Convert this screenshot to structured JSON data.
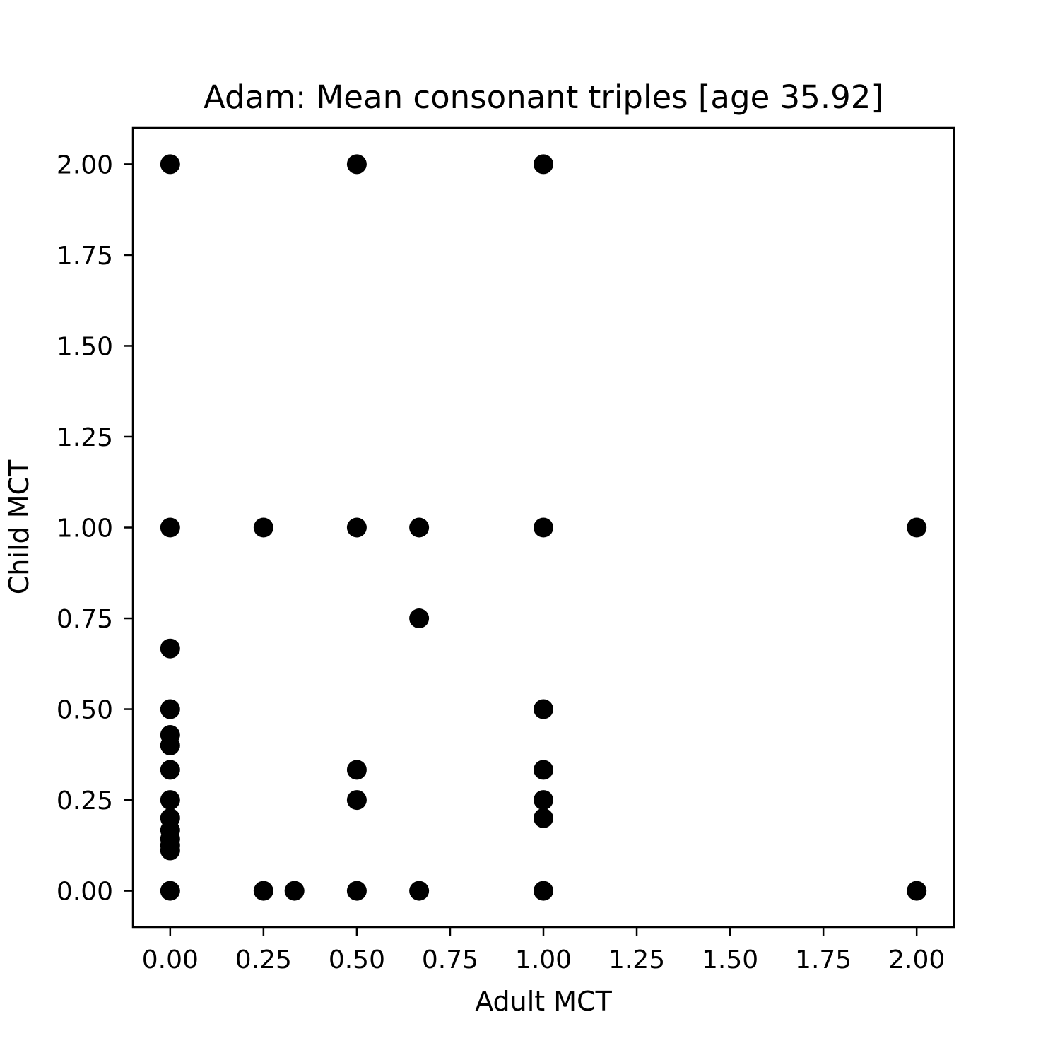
{
  "chart_data": {
    "type": "scatter",
    "title": "Adam: Mean consonant triples [age 35.92]",
    "xlabel": "Adult MCT",
    "ylabel": "Child MCT",
    "xlim": [
      -0.1,
      2.1
    ],
    "ylim": [
      -0.1,
      2.1
    ],
    "xticks": [
      "0.00",
      "0.25",
      "0.50",
      "0.75",
      "1.00",
      "1.25",
      "1.50",
      "1.75",
      "2.00"
    ],
    "yticks": [
      "0.00",
      "0.25",
      "0.50",
      "0.75",
      "1.00",
      "1.25",
      "1.50",
      "1.75",
      "2.00"
    ],
    "grid": false,
    "marker_color": "#000000",
    "points": [
      {
        "x": 0.0,
        "y": 2.0
      },
      {
        "x": 0.5,
        "y": 2.0
      },
      {
        "x": 1.0,
        "y": 2.0
      },
      {
        "x": 0.0,
        "y": 1.0
      },
      {
        "x": 0.25,
        "y": 1.0
      },
      {
        "x": 0.5,
        "y": 1.0
      },
      {
        "x": 0.667,
        "y": 1.0
      },
      {
        "x": 1.0,
        "y": 1.0
      },
      {
        "x": 2.0,
        "y": 1.0
      },
      {
        "x": 0.667,
        "y": 0.75
      },
      {
        "x": 0.0,
        "y": 0.667
      },
      {
        "x": 0.0,
        "y": 0.5
      },
      {
        "x": 1.0,
        "y": 0.5
      },
      {
        "x": 0.0,
        "y": 0.429
      },
      {
        "x": 0.0,
        "y": 0.4
      },
      {
        "x": 0.0,
        "y": 0.333
      },
      {
        "x": 0.5,
        "y": 0.333
      },
      {
        "x": 1.0,
        "y": 0.333
      },
      {
        "x": 0.0,
        "y": 0.25
      },
      {
        "x": 0.5,
        "y": 0.25
      },
      {
        "x": 1.0,
        "y": 0.25
      },
      {
        "x": 0.0,
        "y": 0.2
      },
      {
        "x": 1.0,
        "y": 0.2
      },
      {
        "x": 0.0,
        "y": 0.167
      },
      {
        "x": 0.0,
        "y": 0.143
      },
      {
        "x": 0.0,
        "y": 0.125
      },
      {
        "x": 0.0,
        "y": 0.111
      },
      {
        "x": 0.0,
        "y": 0.0
      },
      {
        "x": 0.25,
        "y": 0.0
      },
      {
        "x": 0.333,
        "y": 0.0
      },
      {
        "x": 0.5,
        "y": 0.0
      },
      {
        "x": 0.667,
        "y": 0.0
      },
      {
        "x": 1.0,
        "y": 0.0
      },
      {
        "x": 2.0,
        "y": 0.0
      }
    ]
  }
}
